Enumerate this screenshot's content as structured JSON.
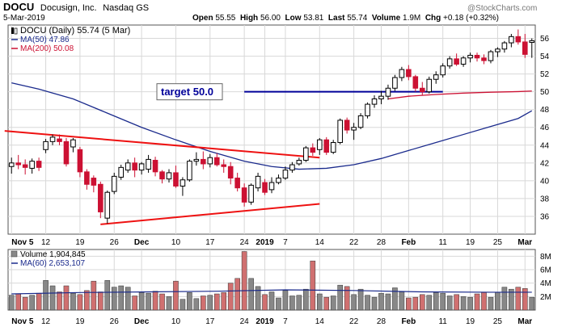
{
  "header": {
    "ticker": "DOCU",
    "company": "Docusign, Inc.",
    "exchange": "Nasdaq GS",
    "date": "5-Mar-2019",
    "open_label": "Open",
    "open": "55.55",
    "high_label": "High",
    "high": "56.00",
    "low_label": "Low",
    "low": "53.81",
    "last_label": "Last",
    "last": "55.74",
    "volume_label": "Volume",
    "volume": "1.9M",
    "chg_label": "Chg",
    "chg": "+0.18 (+0.32%)",
    "watermark": "@StockCharts.com"
  },
  "colors": {
    "up": "#000000",
    "down": "#cc1133",
    "ma50": "#1a2a8c",
    "ma200": "#cc1133",
    "trend": "#ee1111",
    "target": "#000099",
    "vol_up": "#888888",
    "vol_down": "#d07070",
    "grid": "#d8d8d8"
  },
  "chart_data": [
    {
      "type": "candlestick",
      "legend": [
        {
          "name": "DOCU (Daily) 55.74 (5 Mar)",
          "color": "#000000"
        },
        {
          "name": "MA(50) 47.86",
          "color": "#1a2a8c"
        },
        {
          "name": "MA(200) 50.08",
          "color": "#cc1133"
        }
      ],
      "ylim": [
        34,
        57.5
      ],
      "y_ticks": [
        36,
        38,
        40,
        42,
        44,
        46,
        48,
        50,
        52,
        54,
        56
      ],
      "x_ticks": [
        {
          "label": "Nov 5",
          "i": 0
        },
        {
          "label": "12",
          "i": 5
        },
        {
          "label": "19",
          "i": 10
        },
        {
          "label": "26",
          "i": 15
        },
        {
          "label": "Dec",
          "i": 19
        },
        {
          "label": "10",
          "i": 24
        },
        {
          "label": "17",
          "i": 29
        },
        {
          "label": "24",
          "i": 34
        },
        {
          "label": "2019",
          "i": 37
        },
        {
          "label": "7",
          "i": 40
        },
        {
          "label": "14",
          "i": 45
        },
        {
          "label": "22",
          "i": 50
        },
        {
          "label": "28",
          "i": 54
        },
        {
          "label": "Feb",
          "i": 58
        },
        {
          "label": "11",
          "i": 63
        },
        {
          "label": "19",
          "i": 67
        },
        {
          "label": "25",
          "i": 71
        },
        {
          "label": "Mar",
          "i": 75
        }
      ],
      "candles": [
        [
          41.6,
          42.6,
          40.8,
          42.0
        ],
        [
          42.0,
          42.9,
          41.3,
          41.8
        ],
        [
          41.8,
          42.4,
          40.7,
          41.5
        ],
        [
          41.4,
          42.5,
          40.8,
          42.2
        ],
        [
          42.2,
          42.6,
          41.1,
          41.5
        ],
        [
          43.5,
          44.7,
          43.1,
          44.4
        ],
        [
          44.4,
          45.2,
          44.0,
          44.9
        ],
        [
          44.7,
          45.2,
          44.0,
          44.4
        ],
        [
          44.4,
          44.8,
          41.6,
          41.9
        ],
        [
          43.8,
          44.8,
          43.2,
          44.6
        ],
        [
          43.5,
          43.8,
          40.4,
          41.0
        ],
        [
          41.0,
          41.3,
          39.0,
          39.6
        ],
        [
          40.3,
          40.6,
          38.7,
          39.5
        ],
        [
          39.6,
          39.9,
          35.8,
          36.5
        ],
        [
          35.8,
          38.9,
          35.2,
          38.7
        ],
        [
          38.8,
          40.9,
          38.5,
          40.5
        ],
        [
          40.4,
          41.8,
          40.1,
          41.5
        ],
        [
          41.2,
          42.4,
          40.9,
          42.0
        ],
        [
          42.0,
          42.6,
          40.4,
          41.2
        ],
        [
          41.2,
          42.1,
          40.7,
          41.9
        ],
        [
          41.3,
          42.9,
          40.9,
          42.4
        ],
        [
          42.3,
          42.7,
          40.5,
          41.0
        ],
        [
          41.0,
          41.2,
          39.7,
          40.2
        ],
        [
          40.2,
          41.3,
          39.8,
          40.9
        ],
        [
          40.9,
          41.7,
          39.2,
          39.4
        ],
        [
          39.4,
          40.4,
          38.3,
          40.1
        ],
        [
          40.1,
          42.4,
          39.9,
          42.2
        ],
        [
          42.2,
          43.2,
          41.7,
          42.4
        ],
        [
          42.4,
          43.3,
          41.3,
          41.9
        ],
        [
          41.9,
          43.0,
          41.5,
          42.6
        ],
        [
          42.6,
          43.1,
          41.6,
          41.8
        ],
        [
          41.8,
          42.4,
          40.9,
          41.6
        ],
        [
          41.6,
          42.1,
          39.6,
          40.3
        ],
        [
          40.3,
          40.9,
          38.8,
          39.2
        ],
        [
          39.2,
          39.7,
          37.1,
          37.6
        ],
        [
          37.6,
          39.7,
          37.3,
          39.5
        ],
        [
          39.2,
          40.9,
          38.8,
          40.5
        ],
        [
          39.8,
          40.2,
          38.4,
          38.7
        ],
        [
          39.0,
          40.4,
          38.6,
          39.8
        ],
        [
          39.8,
          40.7,
          39.6,
          40.3
        ],
        [
          40.3,
          41.6,
          40.1,
          41.2
        ],
        [
          41.2,
          42.1,
          40.9,
          41.8
        ],
        [
          41.9,
          42.6,
          41.7,
          42.3
        ],
        [
          42.3,
          43.9,
          42.1,
          43.7
        ],
        [
          43.7,
          44.2,
          42.8,
          43.2
        ],
        [
          43.5,
          44.8,
          42.9,
          44.6
        ],
        [
          44.6,
          44.9,
          42.9,
          43.2
        ],
        [
          43.2,
          44.6,
          43.0,
          44.3
        ],
        [
          44.3,
          47.0,
          44.1,
          46.8
        ],
        [
          46.8,
          47.1,
          45.3,
          45.7
        ],
        [
          45.7,
          46.5,
          44.6,
          46.0
        ],
        [
          46.0,
          47.6,
          45.8,
          47.3
        ],
        [
          47.3,
          48.8,
          47.0,
          48.6
        ],
        [
          48.6,
          49.6,
          48.2,
          49.2
        ],
        [
          49.2,
          50.1,
          48.6,
          49.5
        ],
        [
          49.5,
          50.8,
          49.1,
          50.4
        ],
        [
          50.4,
          51.9,
          50.1,
          51.6
        ],
        [
          51.6,
          52.8,
          51.2,
          52.5
        ],
        [
          52.5,
          53.0,
          51.3,
          51.7
        ],
        [
          51.7,
          51.9,
          50.0,
          50.4
        ],
        [
          50.4,
          51.1,
          49.6,
          50.0
        ],
        [
          50.0,
          51.7,
          49.8,
          51.4
        ],
        [
          51.4,
          52.3,
          50.9,
          51.9
        ],
        [
          51.9,
          53.2,
          51.6,
          52.9
        ],
        [
          52.9,
          54.0,
          52.6,
          53.7
        ],
        [
          53.7,
          54.3,
          52.9,
          53.1
        ],
        [
          53.1,
          54.0,
          52.8,
          53.8
        ],
        [
          53.8,
          54.4,
          53.3,
          54.1
        ],
        [
          54.1,
          54.4,
          53.4,
          53.8
        ],
        [
          53.8,
          54.2,
          53.1,
          53.5
        ],
        [
          53.5,
          54.7,
          53.2,
          54.5
        ],
        [
          54.5,
          55.0,
          53.9,
          54.8
        ],
        [
          54.8,
          55.7,
          54.4,
          55.5
        ],
        [
          55.5,
          56.5,
          55.0,
          56.2
        ],
        [
          56.2,
          57.0,
          55.3,
          55.6
        ],
        [
          55.6,
          56.5,
          53.8,
          54.2
        ],
        [
          55.55,
          56.0,
          53.81,
          55.74
        ]
      ],
      "candle_dir": [
        1,
        -1,
        -1,
        1,
        -1,
        1,
        1,
        -1,
        -1,
        1,
        -1,
        -1,
        -1,
        -1,
        1,
        1,
        1,
        1,
        -1,
        1,
        1,
        -1,
        -1,
        1,
        -1,
        1,
        1,
        1,
        -1,
        1,
        -1,
        -1,
        -1,
        -1,
        -1,
        1,
        1,
        -1,
        1,
        1,
        1,
        1,
        1,
        1,
        -1,
        1,
        -1,
        1,
        1,
        -1,
        1,
        1,
        1,
        1,
        1,
        1,
        1,
        1,
        -1,
        -1,
        -1,
        1,
        1,
        1,
        1,
        -1,
        1,
        1,
        -1,
        -1,
        1,
        1,
        1,
        1,
        -1,
        -1,
        1
      ],
      "ma50": [
        [
          0,
          51.0
        ],
        [
          4,
          50.3
        ],
        [
          9,
          49.2
        ],
        [
          14,
          47.6
        ],
        [
          19,
          46.0
        ],
        [
          24,
          44.6
        ],
        [
          29,
          43.3
        ],
        [
          34,
          42.2
        ],
        [
          38,
          41.6
        ],
        [
          42,
          41.3
        ],
        [
          46,
          41.4
        ],
        [
          50,
          41.8
        ],
        [
          54,
          42.5
        ],
        [
          58,
          43.4
        ],
        [
          62,
          44.3
        ],
        [
          66,
          45.2
        ],
        [
          70,
          46.1
        ],
        [
          74,
          47.0
        ],
        [
          76,
          47.86
        ]
      ],
      "ma200": [
        [
          55,
          49.2
        ],
        [
          58,
          49.5
        ],
        [
          62,
          49.7
        ],
        [
          66,
          49.85
        ],
        [
          70,
          49.95
        ],
        [
          74,
          50.02
        ],
        [
          76,
          50.08
        ]
      ],
      "annotations": {
        "target_label": "target 50.0",
        "target_value": 50.0,
        "target_i": [
          34,
          63
        ],
        "trend_upper": [
          [
            -1,
            45.6
          ],
          [
            45,
            42.6
          ]
        ],
        "trend_lower": [
          [
            13,
            35.1
          ],
          [
            45,
            37.4
          ]
        ]
      }
    },
    {
      "type": "bar",
      "legend": [
        {
          "name": "Volume 1,904,845",
          "color": "#000000"
        },
        {
          "name": "MA(60) 2,653,107",
          "color": "#1a2a8c"
        }
      ],
      "ylim": [
        0,
        9
      ],
      "y_ticks": [
        2,
        4,
        6,
        8
      ],
      "y_tick_labels": [
        "2M",
        "4M",
        "6M",
        "8M"
      ],
      "volume_millions": [
        2.2,
        2.4,
        1.9,
        2.2,
        2.5,
        4.4,
        3.6,
        2.7,
        3.6,
        2.5,
        2.3,
        2.9,
        4.3,
        2.7,
        4.4,
        3.4,
        3.6,
        3.4,
        2.1,
        2.6,
        2.5,
        2.8,
        2.4,
        2.0,
        4.3,
        1.6,
        2.6,
        1.7,
        2.1,
        2.2,
        2.4,
        2.6,
        4.0,
        4.7,
        8.7,
        4.7,
        3.5,
        2.3,
        2.7,
        1.8,
        2.9,
        2.1,
        2.2,
        3.1,
        7.3,
        2.4,
        1.9,
        2.1,
        3.7,
        3.5,
        2.3,
        3.1,
        2.2,
        1.9,
        2.5,
        2.4,
        3.3,
        2.7,
        1.8,
        1.9,
        2.3,
        2.2,
        2.6,
        2.5,
        2.1,
        2.3,
        2.0,
        1.9,
        2.4,
        2.6,
        1.9,
        2.6,
        3.4,
        3.1,
        3.4,
        3.2,
        1.9
      ],
      "ma60": [
        [
          0,
          2.4
        ],
        [
          10,
          2.6
        ],
        [
          20,
          2.7
        ],
        [
          30,
          2.8
        ],
        [
          40,
          3.0
        ],
        [
          50,
          2.9
        ],
        [
          60,
          2.7
        ],
        [
          70,
          2.65
        ],
        [
          76,
          2.65
        ]
      ]
    }
  ]
}
